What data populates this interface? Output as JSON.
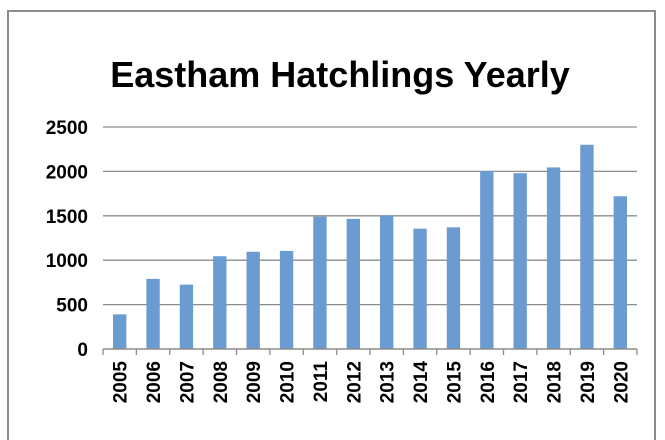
{
  "chart_data": {
    "type": "bar",
    "title": "Eastham Hatchlings Yearly",
    "xlabel": "",
    "ylabel": "",
    "ylim": [
      0,
      2500
    ],
    "yticks": [
      0,
      500,
      1000,
      1500,
      2000,
      2500
    ],
    "ytick_labels": [
      "0",
      "500",
      "1000",
      "1500",
      "2000",
      "2500"
    ],
    "categories": [
      "2005",
      "2006",
      "2007",
      "2008",
      "2009",
      "2010",
      "2011",
      "2012",
      "2013",
      "2014",
      "2015",
      "2016",
      "2017",
      "2018",
      "2019",
      "2020"
    ],
    "values": [
      390,
      790,
      725,
      1045,
      1095,
      1105,
      1490,
      1465,
      1505,
      1355,
      1370,
      2005,
      1980,
      2045,
      2300,
      1720
    ],
    "grid": true,
    "legend": "none",
    "bar_color": "#6a9bd1"
  }
}
